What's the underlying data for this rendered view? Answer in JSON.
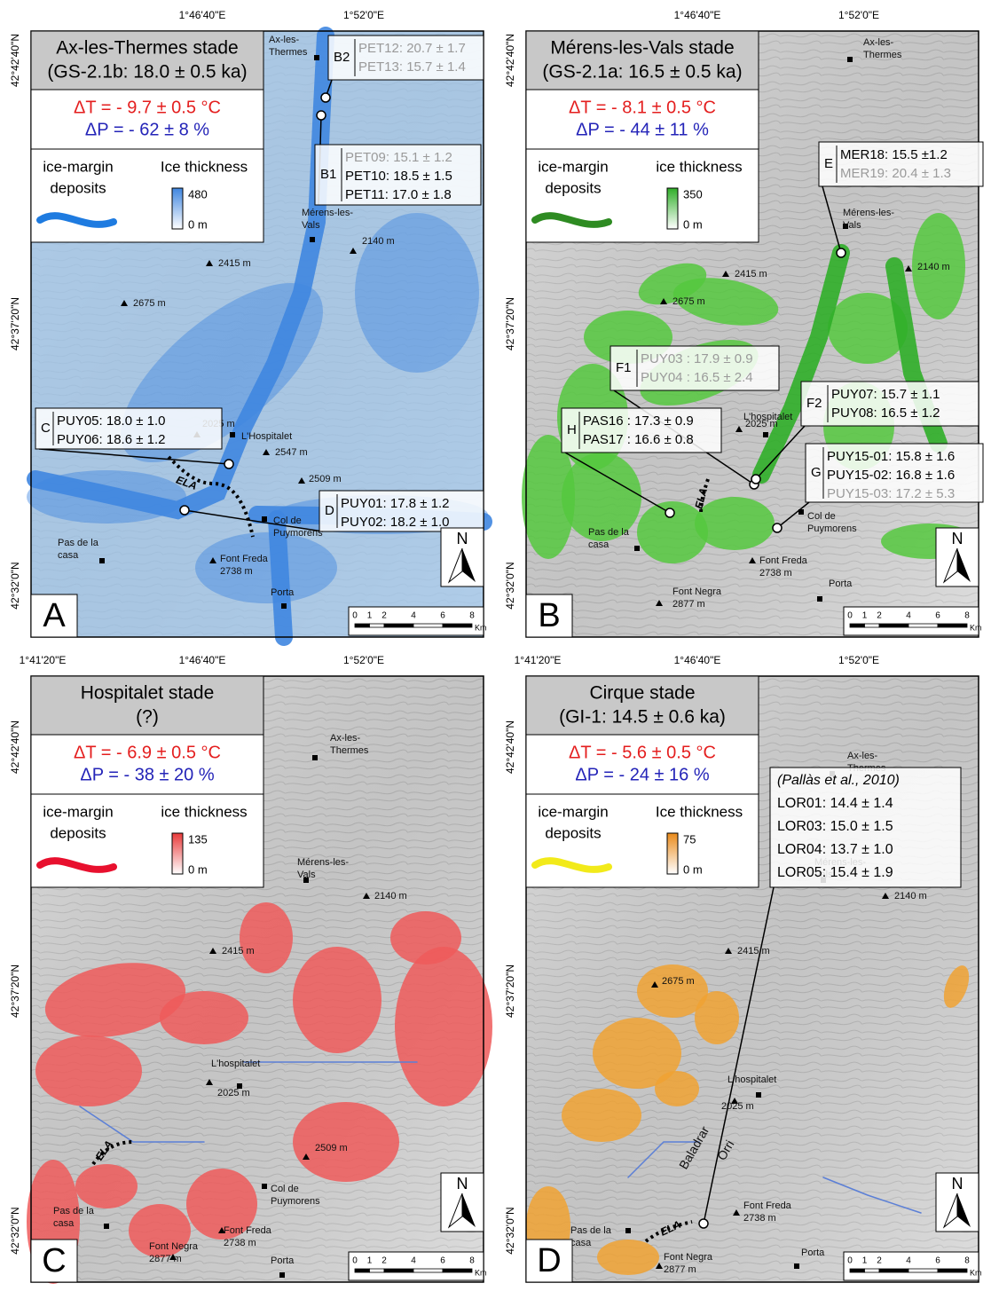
{
  "panels": [
    {
      "letter": "A",
      "top_coords": [
        "1°46'40\"E",
        "1°52'0\"E"
      ],
      "left_coords": [
        "42°42'40\"N",
        "42°37'20\"N",
        "42°32'0\"N"
      ],
      "title": [
        "Ax-les-Thermes stade",
        "(GS-2.1b: 18.0 ± 0.5 ka)"
      ],
      "delta_t": "ΔT = - 9.7 ± 0.5 °C",
      "delta_p": "ΔP = - 62 ± 8 %",
      "legend": {
        "deposits": [
          "ice-margin",
          "deposits"
        ],
        "thickness_title": "Ice thickness",
        "thickness_max": "480",
        "thickness_min": "0 m",
        "color": "#1e7be0"
      },
      "places": [
        {
          "lines": [
            "Ax-les-",
            "Thermes"
          ]
        },
        {
          "lines": [
            "Mérens-les-",
            "Vals"
          ]
        },
        {
          "lines": [
            "2140 m"
          ]
        },
        {
          "lines": [
            "2415 m"
          ]
        },
        {
          "lines": [
            "2675 m"
          ]
        },
        {
          "lines": [
            "L'Hospitalet"
          ]
        },
        {
          "lines": [
            "2025 m"
          ]
        },
        {
          "lines": [
            "2547 m"
          ]
        },
        {
          "lines": [
            "2509 m"
          ]
        },
        {
          "lines": [
            "Col de",
            "Puymorens"
          ]
        },
        {
          "lines": [
            "Pas de la",
            "casa"
          ]
        },
        {
          "lines": [
            "Font Freda",
            "2738 m"
          ]
        },
        {
          "lines": [
            "Porta"
          ]
        }
      ],
      "samples": [
        {
          "id": "B2",
          "lines": [
            {
              "text": "PET12: 20.7 ± 1.7",
              "color": "#9a9a9a"
            },
            {
              "text": "PET13: 15.7 ± 1.4",
              "color": "#9a9a9a"
            }
          ]
        },
        {
          "id": "B1",
          "lines": [
            {
              "text": "PET09: 15.1 ± 1.2",
              "color": "#9a9a9a"
            },
            {
              "text": "PET10: 18.5 ± 1.5",
              "color": "#000000"
            },
            {
              "text": "PET11: 17.0 ± 1.8",
              "color": "#000000"
            }
          ]
        },
        {
          "id": "C",
          "lines": [
            {
              "text": "PUY05: 18.0 ± 1.0",
              "color": "#000000"
            },
            {
              "text": "PUY06: 18.6 ± 1.2",
              "color": "#000000"
            }
          ]
        },
        {
          "id": "D",
          "lines": [
            {
              "text": "PUY01: 17.8 ± 1.2",
              "color": "#000000"
            },
            {
              "text": "PUY02: 18.2 ± 1.0",
              "color": "#000000"
            }
          ]
        }
      ],
      "ela": "ELA",
      "north": "N",
      "scale": [
        0,
        1,
        2,
        4,
        6,
        8
      ],
      "scale_unit": "Km"
    },
    {
      "letter": "B",
      "top_coords": [
        "1°46'40\"E",
        "1°52'0\"E"
      ],
      "left_coords": [
        "42°42'40\"N",
        "42°37'20\"N",
        "42°32'0\"N"
      ],
      "title": [
        "Mérens-les-Vals stade",
        "(GS-2.1a: 16.5 ± 0.5 ka)"
      ],
      "delta_t": "ΔT = - 8.1 ± 0.5 °C",
      "delta_p": "ΔP = - 44 ± 11 %",
      "legend": {
        "deposits": [
          "ice-margin",
          "deposits"
        ],
        "thickness_title": "ice thickness",
        "thickness_max": "350",
        "thickness_min": "0 m",
        "color": "#2e8b22"
      },
      "places": [
        {
          "lines": [
            "Ax-les-",
            "Thermes"
          ]
        },
        {
          "lines": [
            "Mérens-les-",
            "Vals"
          ]
        },
        {
          "lines": [
            "2140 m"
          ]
        },
        {
          "lines": [
            "2415 m"
          ]
        },
        {
          "lines": [
            "2675 m"
          ]
        },
        {
          "lines": [
            "L'hospitalet"
          ]
        },
        {
          "lines": [
            "2025 m"
          ]
        },
        {
          "lines": [
            "Col de",
            "Puymorens"
          ]
        },
        {
          "lines": [
            "Pas de la",
            "casa"
          ]
        },
        {
          "lines": [
            "Font Freda",
            "2738 m"
          ]
        },
        {
          "lines": [
            "Porta"
          ]
        },
        {
          "lines": [
            "Font Negra",
            "2877 m"
          ]
        }
      ],
      "samples": [
        {
          "id": "E",
          "lines": [
            {
              "text": "MER18: 15.5 ±1.2",
              "color": "#000000"
            },
            {
              "text": "MER19: 20.4 ± 1.3",
              "color": "#9a9a9a"
            }
          ]
        },
        {
          "id": "F1",
          "lines": [
            {
              "text": "PUY03 : 17.9 ± 0.9",
              "color": "#9a9a9a"
            },
            {
              "text": "PUY04 : 16.5 ± 2.4",
              "color": "#9a9a9a"
            }
          ]
        },
        {
          "id": "F2",
          "lines": [
            {
              "text": "PUY07: 15.7 ± 1.1",
              "color": "#000000"
            },
            {
              "text": "PUY08: 16.5 ± 1.2",
              "color": "#000000"
            }
          ]
        },
        {
          "id": "H",
          "lines": [
            {
              "text": "PAS16 : 17.3 ± 0.9",
              "color": "#000000"
            },
            {
              "text": "PAS17 : 16.6 ± 0.8",
              "color": "#000000"
            }
          ]
        },
        {
          "id": "G",
          "lines": [
            {
              "text": "PUY15-01: 15.8 ± 1.6",
              "color": "#000000"
            },
            {
              "text": "PUY15-02: 16.8 ± 1.6",
              "color": "#000000"
            },
            {
              "text": "PUY15-03: 17.2 ± 5.3",
              "color": "#9a9a9a"
            }
          ]
        }
      ],
      "ela": "ELA",
      "north": "N",
      "scale": [
        0,
        1,
        2,
        4,
        6,
        8
      ],
      "scale_unit": "Km"
    },
    {
      "letter": "C",
      "top_coords": [
        "1°41'20\"E",
        "1°46'40\"E",
        "1°52'0\"E"
      ],
      "left_coords": [
        "42°42'40\"N",
        "42°37'20\"N",
        "42°32'0\"N"
      ],
      "title": [
        "Hospitalet stade",
        "(?)"
      ],
      "delta_t": "ΔT = - 6.9 ± 0.5 °C",
      "delta_p": "ΔP = - 38 ± 20 %",
      "legend": {
        "deposits": [
          "ice-margin",
          "deposits"
        ],
        "thickness_title": "ice thickness",
        "thickness_max": "135",
        "thickness_min": "0 m",
        "color": "#e8102e"
      },
      "places": [
        {
          "lines": [
            "Ax-les-",
            "Thermes"
          ]
        },
        {
          "lines": [
            "Mérens-les-",
            "Vals"
          ]
        },
        {
          "lines": [
            "2140 m"
          ]
        },
        {
          "lines": [
            "2415 m"
          ]
        },
        {
          "lines": [
            "L'hospitalet"
          ]
        },
        {
          "lines": [
            "2025 m"
          ]
        },
        {
          "lines": [
            "2509 m"
          ]
        },
        {
          "lines": [
            "Col de",
            "Puymorens"
          ]
        },
        {
          "lines": [
            "Pas de la",
            "casa"
          ]
        },
        {
          "lines": [
            "Font Freda",
            "2738 m"
          ]
        },
        {
          "lines": [
            "Font Negra",
            "2877 m"
          ]
        },
        {
          "lines": [
            "Porta"
          ]
        }
      ],
      "samples": [],
      "ela": "ELA",
      "north": "N",
      "scale": [
        0,
        1,
        2,
        4,
        6,
        8
      ],
      "scale_unit": "Km"
    },
    {
      "letter": "D",
      "top_coords": [
        "1°41'20\"E",
        "1°46'40\"E",
        "1°52'0\"E"
      ],
      "left_coords": [
        "42°42'40\"N",
        "42°37'20\"N",
        "42°32'0\"N"
      ],
      "title": [
        "Cirque stade",
        "(GI-1: 14.5 ± 0.6 ka)"
      ],
      "delta_t": "ΔT = - 5.6 ± 0.5 °C",
      "delta_p": "ΔP = - 24 ± 16 %",
      "legend": {
        "deposits": [
          "ice-margin",
          "deposits"
        ],
        "thickness_title": "Ice thickness",
        "thickness_max": "75",
        "thickness_min": "0 m",
        "color": "#f2ea1a"
      },
      "places": [
        {
          "lines": [
            "Ax-les-",
            "Thermes"
          ]
        },
        {
          "lines": [
            "Mérens-les-",
            "Vals"
          ]
        },
        {
          "lines": [
            "2140 m"
          ]
        },
        {
          "lines": [
            "2415 m"
          ]
        },
        {
          "lines": [
            "2675 m"
          ]
        },
        {
          "lines": [
            "L'hospitalet"
          ]
        },
        {
          "lines": [
            "2025 m"
          ]
        },
        {
          "lines": [
            "Pas de la",
            "casa"
          ]
        },
        {
          "lines": [
            "Font Freda",
            "2738 m"
          ]
        },
        {
          "lines": [
            "Porta"
          ]
        },
        {
          "lines": [
            "Font Negra",
            "2877 m"
          ]
        },
        {
          "lines": [
            "Baladrar"
          ]
        },
        {
          "lines": [
            "Orri"
          ]
        }
      ],
      "samples": [
        {
          "header": "(Pallàs et al., 2010)",
          "lines": [
            {
              "text": "LOR01: 14.4 ± 1.4",
              "color": "#000000"
            },
            {
              "text": "LOR03: 15.0 ± 1.5",
              "color": "#000000"
            },
            {
              "text": "LOR04: 13.7 ± 1.0",
              "color": "#000000"
            },
            {
              "text": "LOR05: 15.4 ± 1.9",
              "color": "#000000"
            }
          ]
        }
      ],
      "ela": "ELA",
      "north": "N",
      "scale": [
        0,
        1,
        2,
        4,
        6,
        8
      ],
      "scale_unit": "Km"
    }
  ]
}
